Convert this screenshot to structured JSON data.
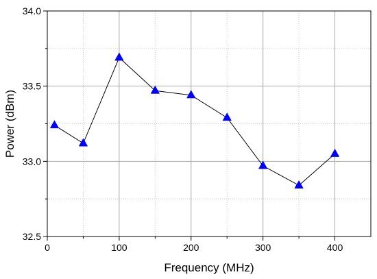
{
  "chart_data": {
    "type": "line",
    "title": "",
    "xlabel": "Frequency (MHz)",
    "ylabel": "Power (dBm)",
    "xlim": [
      0,
      450
    ],
    "ylim": [
      32.5,
      34.0
    ],
    "x_ticks": [
      0,
      100,
      200,
      300,
      400
    ],
    "x_tick_labels": [
      "0",
      "100",
      "200",
      "300",
      "400"
    ],
    "x_minor_ticks": [
      50,
      150,
      250,
      350
    ],
    "y_ticks": [
      32.5,
      33.0,
      33.5,
      34.0
    ],
    "y_tick_labels": [
      "32.5",
      "33.0",
      "33.5",
      "34.0"
    ],
    "y_minor_ticks": [
      32.75,
      33.25,
      33.75
    ],
    "grid": true,
    "series": [
      {
        "x": [
          10,
          50,
          100,
          150,
          200,
          250,
          300,
          350,
          400
        ],
        "values": [
          33.24,
          33.12,
          33.69,
          33.47,
          33.44,
          33.29,
          32.97,
          32.84,
          33.05
        ],
        "marker": "triangle",
        "marker_color": "#0000FF",
        "line_color": "#000000"
      }
    ]
  }
}
